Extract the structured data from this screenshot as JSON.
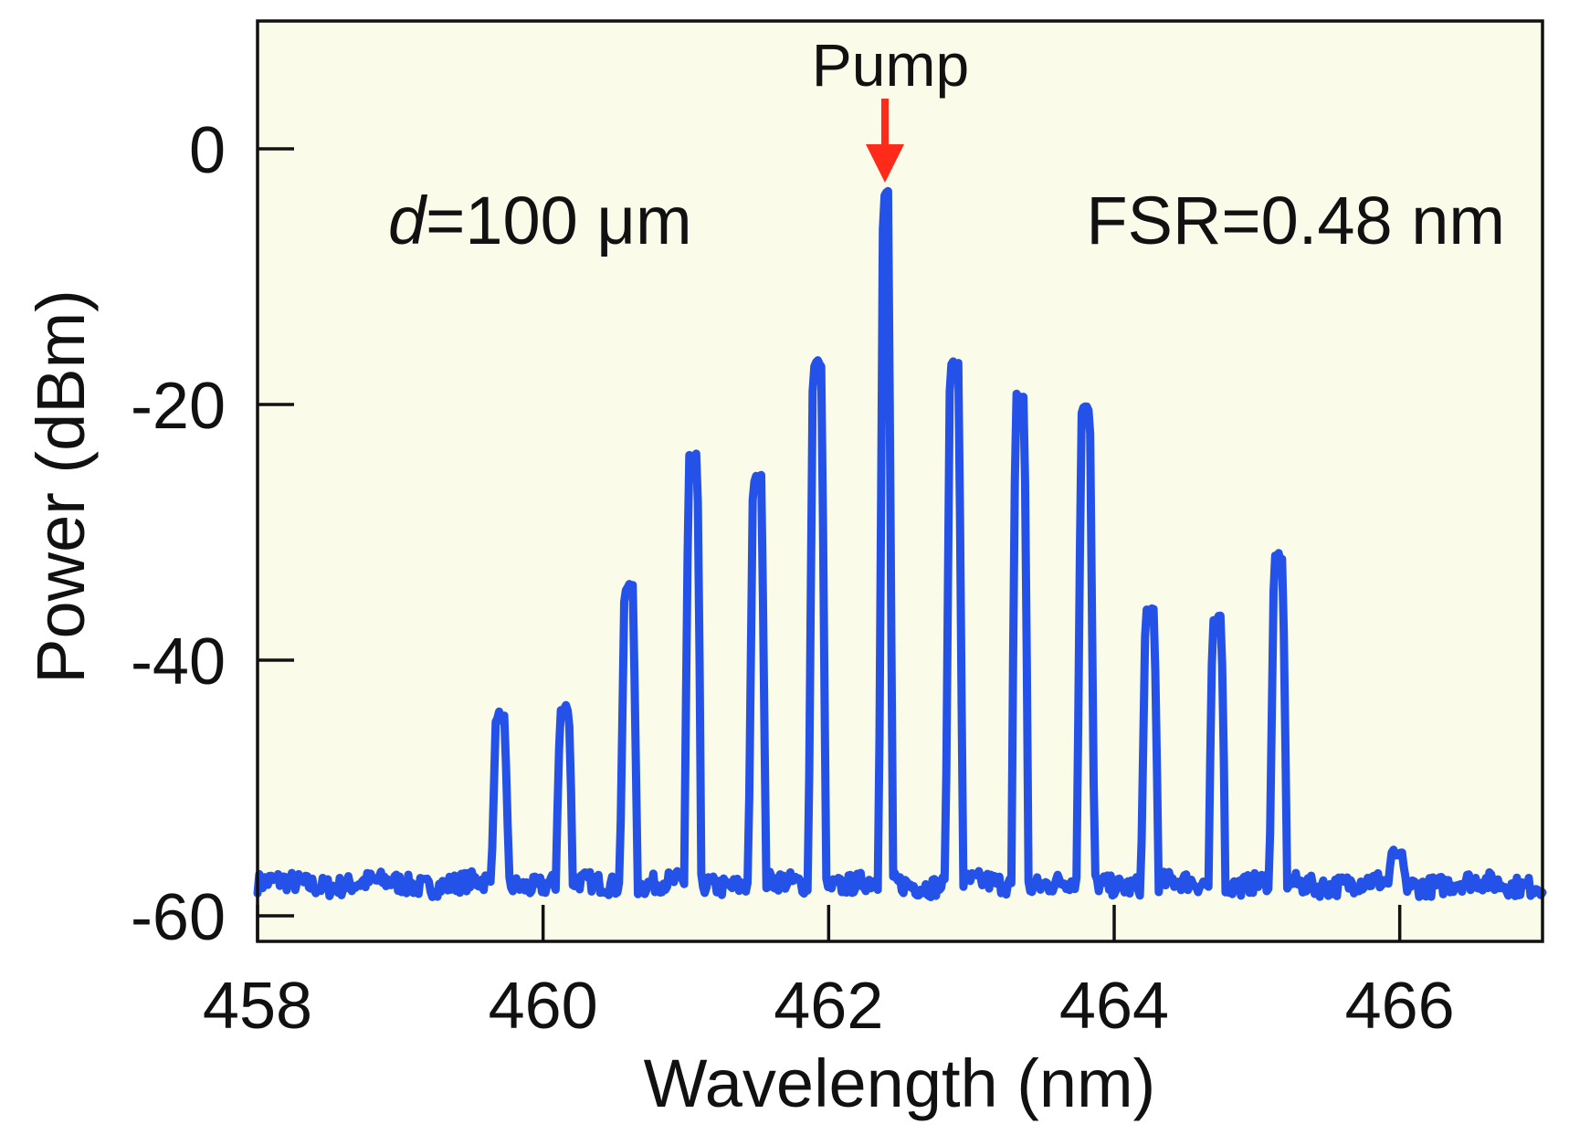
{
  "chart_data": {
    "type": "line",
    "title": "",
    "xlabel": "Wavelength (nm)",
    "ylabel": "Power (dBm)",
    "xlim": [
      458,
      467
    ],
    "ylim": [
      -62,
      10
    ],
    "xticks": [
      458,
      460,
      462,
      464,
      466
    ],
    "yticks": [
      0,
      -20,
      -40,
      -60
    ],
    "xtick_labels": [
      "458",
      "460",
      "462",
      "464",
      "466"
    ],
    "ytick_labels": [
      "0",
      "-20",
      "-40",
      "-60"
    ],
    "grid": false,
    "background_color": "#fbfbea",
    "series_color": "#2452e8",
    "pump_arrow_color": "#ff2a1a",
    "baseline_dbm": -57.5,
    "annotations": {
      "pump": "Pump",
      "thickness_italic": "d",
      "thickness_value": "=100 μm",
      "fsr": "FSR=0.48 nm"
    },
    "pump_wavelength": 462.4,
    "peaks": [
      {
        "wavelength": 459.7,
        "power": -44.0
      },
      {
        "wavelength": 460.15,
        "power": -43.5
      },
      {
        "wavelength": 460.6,
        "power": -34.0
      },
      {
        "wavelength": 461.05,
        "power": -23.5
      },
      {
        "wavelength": 461.5,
        "power": -25.5
      },
      {
        "wavelength": 461.92,
        "power": -16.5
      },
      {
        "wavelength": 462.4,
        "power": -3.0
      },
      {
        "wavelength": 462.88,
        "power": -16.5
      },
      {
        "wavelength": 463.34,
        "power": -19.0
      },
      {
        "wavelength": 463.8,
        "power": -20.0
      },
      {
        "wavelength": 464.25,
        "power": -35.5
      },
      {
        "wavelength": 464.72,
        "power": -36.5
      },
      {
        "wavelength": 465.15,
        "power": -31.5
      },
      {
        "wavelength": 465.98,
        "power": -54.5
      }
    ]
  }
}
